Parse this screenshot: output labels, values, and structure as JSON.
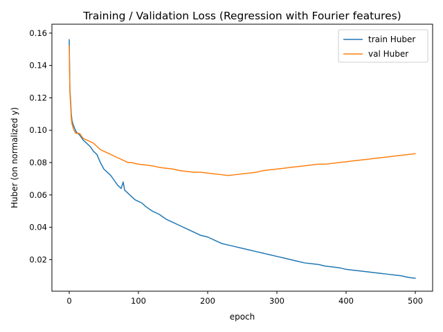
{
  "chart_data": {
    "type": "line",
    "title": "Training / Validation Loss (Regression with Fourier features)",
    "xlabel": "epoch",
    "ylabel": "Huber (on normalized y)",
    "xlim": [
      -25,
      525
    ],
    "ylim": [
      0.0005,
      0.1655
    ],
    "xticks": [
      0,
      100,
      200,
      300,
      400,
      500
    ],
    "yticks": [
      0.02,
      0.04,
      0.06,
      0.08,
      0.1,
      0.12,
      0.14,
      0.16
    ],
    "ytick_labels": [
      "0.02",
      "0.04",
      "0.06",
      "0.08",
      "0.10",
      "0.12",
      "0.14",
      "0.16"
    ],
    "grid": false,
    "legend": {
      "position": "upper right",
      "entries": [
        "train Huber",
        "val Huber"
      ]
    },
    "series": [
      {
        "name": "train Huber",
        "color": "#1f77b4",
        "points": [
          [
            0,
            0.156
          ],
          [
            1,
            0.125
          ],
          [
            2,
            0.118
          ],
          [
            3,
            0.11
          ],
          [
            4,
            0.106
          ],
          [
            6,
            0.103
          ],
          [
            8,
            0.101
          ],
          [
            10,
            0.099
          ],
          [
            15,
            0.097
          ],
          [
            20,
            0.094
          ],
          [
            25,
            0.092
          ],
          [
            30,
            0.09
          ],
          [
            35,
            0.087
          ],
          [
            40,
            0.085
          ],
          [
            45,
            0.08
          ],
          [
            50,
            0.076
          ],
          [
            55,
            0.074
          ],
          [
            60,
            0.072
          ],
          [
            65,
            0.069
          ],
          [
            70,
            0.066
          ],
          [
            75,
            0.064
          ],
          [
            78,
            0.068
          ],
          [
            80,
            0.063
          ],
          [
            85,
            0.061
          ],
          [
            90,
            0.059
          ],
          [
            95,
            0.057
          ],
          [
            100,
            0.056
          ],
          [
            105,
            0.055
          ],
          [
            110,
            0.053
          ],
          [
            120,
            0.05
          ],
          [
            130,
            0.048
          ],
          [
            140,
            0.045
          ],
          [
            150,
            0.043
          ],
          [
            160,
            0.041
          ],
          [
            170,
            0.039
          ],
          [
            180,
            0.037
          ],
          [
            190,
            0.035
          ],
          [
            200,
            0.034
          ],
          [
            210,
            0.032
          ],
          [
            220,
            0.03
          ],
          [
            230,
            0.029
          ],
          [
            240,
            0.028
          ],
          [
            250,
            0.027
          ],
          [
            260,
            0.026
          ],
          [
            270,
            0.025
          ],
          [
            280,
            0.024
          ],
          [
            290,
            0.023
          ],
          [
            300,
            0.022
          ],
          [
            310,
            0.021
          ],
          [
            320,
            0.02
          ],
          [
            330,
            0.019
          ],
          [
            340,
            0.018
          ],
          [
            350,
            0.0175
          ],
          [
            360,
            0.017
          ],
          [
            370,
            0.016
          ],
          [
            380,
            0.0155
          ],
          [
            390,
            0.015
          ],
          [
            400,
            0.014
          ],
          [
            410,
            0.0135
          ],
          [
            420,
            0.013
          ],
          [
            430,
            0.0125
          ],
          [
            440,
            0.012
          ],
          [
            450,
            0.0115
          ],
          [
            460,
            0.011
          ],
          [
            470,
            0.0105
          ],
          [
            480,
            0.01
          ],
          [
            490,
            0.009
          ],
          [
            500,
            0.0085
          ]
        ]
      },
      {
        "name": "val Huber",
        "color": "#ff7f0e",
        "points": [
          [
            0,
            0.152
          ],
          [
            1,
            0.123
          ],
          [
            2,
            0.116
          ],
          [
            3,
            0.107
          ],
          [
            4,
            0.104
          ],
          [
            6,
            0.101
          ],
          [
            8,
            0.099
          ],
          [
            10,
            0.098
          ],
          [
            15,
            0.098
          ],
          [
            20,
            0.095
          ],
          [
            25,
            0.094
          ],
          [
            30,
            0.093
          ],
          [
            35,
            0.092
          ],
          [
            40,
            0.09
          ],
          [
            45,
            0.088
          ],
          [
            50,
            0.087
          ],
          [
            55,
            0.086
          ],
          [
            60,
            0.085
          ],
          [
            65,
            0.084
          ],
          [
            70,
            0.083
          ],
          [
            75,
            0.082
          ],
          [
            80,
            0.081
          ],
          [
            85,
            0.08
          ],
          [
            90,
            0.08
          ],
          [
            100,
            0.079
          ],
          [
            110,
            0.0785
          ],
          [
            120,
            0.078
          ],
          [
            130,
            0.077
          ],
          [
            140,
            0.0765
          ],
          [
            150,
            0.076
          ],
          [
            160,
            0.075
          ],
          [
            170,
            0.0745
          ],
          [
            180,
            0.074
          ],
          [
            190,
            0.074
          ],
          [
            200,
            0.0735
          ],
          [
            210,
            0.073
          ],
          [
            220,
            0.0725
          ],
          [
            230,
            0.072
          ],
          [
            240,
            0.0725
          ],
          [
            250,
            0.073
          ],
          [
            260,
            0.0735
          ],
          [
            270,
            0.074
          ],
          [
            280,
            0.075
          ],
          [
            290,
            0.0755
          ],
          [
            300,
            0.076
          ],
          [
            310,
            0.0765
          ],
          [
            320,
            0.077
          ],
          [
            330,
            0.0775
          ],
          [
            340,
            0.078
          ],
          [
            350,
            0.0785
          ],
          [
            360,
            0.079
          ],
          [
            370,
            0.079
          ],
          [
            380,
            0.0795
          ],
          [
            390,
            0.08
          ],
          [
            400,
            0.0805
          ],
          [
            410,
            0.081
          ],
          [
            420,
            0.0815
          ],
          [
            430,
            0.082
          ],
          [
            440,
            0.0825
          ],
          [
            450,
            0.083
          ],
          [
            460,
            0.0835
          ],
          [
            470,
            0.084
          ],
          [
            480,
            0.0845
          ],
          [
            490,
            0.085
          ],
          [
            500,
            0.0855
          ]
        ]
      }
    ]
  }
}
